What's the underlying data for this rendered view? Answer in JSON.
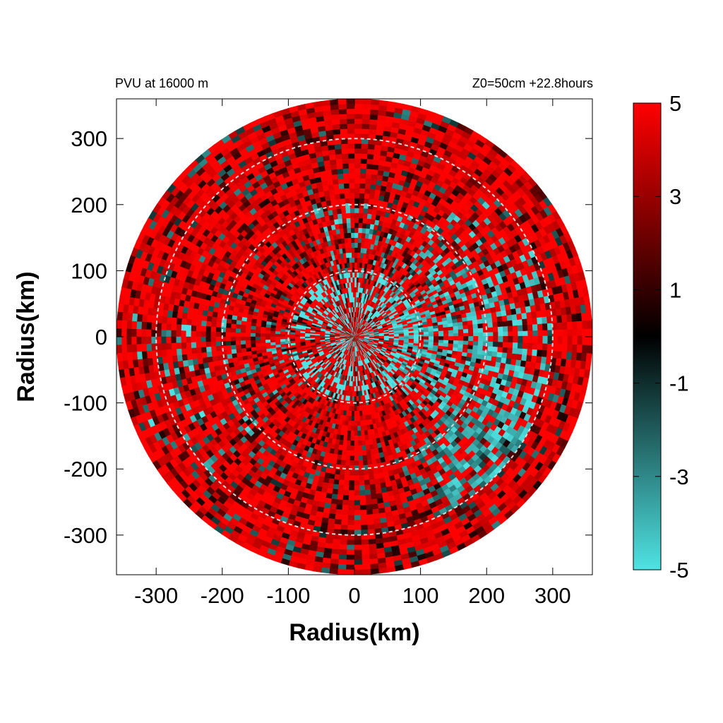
{
  "chart_data": {
    "type": "heatmap",
    "projection": "polar (plotted on cartesian x/y km axes)",
    "title_left": "PVU at 16000 m",
    "title_right": "Z0=50cm  +22.8hours",
    "xlabel": "Radius(km)",
    "ylabel": "Radius(km)",
    "xlim": [
      -360,
      360
    ],
    "ylim": [
      -360,
      360
    ],
    "xticks": [
      -300,
      -200,
      -100,
      0,
      100,
      200,
      300
    ],
    "yticks": [
      -300,
      -200,
      -100,
      0,
      100,
      200,
      300
    ],
    "data_max_radius_km": 360,
    "reference_circles_km": [
      100,
      200,
      300
    ],
    "reference_circle_style": "dashed, light gray",
    "grid": false,
    "colorbar": {
      "range": [
        -5,
        5
      ],
      "ticks": [
        5,
        3,
        1,
        -1,
        -3,
        -5
      ],
      "colors": [
        {
          "value": -5,
          "color": "#4fe3e3"
        },
        {
          "value": 0,
          "color": "#000000"
        },
        {
          "value": 5,
          "color": "#ff0000"
        }
      ]
    },
    "field_description_hint": "positive PVU (red) dominant everywhere; negative PVU (cyan) streaks concentrated in core r<100 km and in an east / south-east spiral band between 50 and 300 km"
  },
  "colors": {
    "positive": "#ff0000",
    "zero": "#000000",
    "negative": "#4fe3e3",
    "reference_circle": "#d9d9d9"
  }
}
